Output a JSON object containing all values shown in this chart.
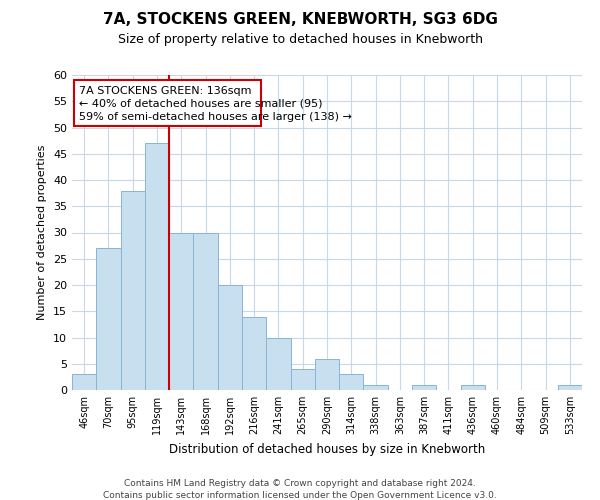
{
  "title": "7A, STOCKENS GREEN, KNEBWORTH, SG3 6DG",
  "subtitle": "Size of property relative to detached houses in Knebworth",
  "xlabel": "Distribution of detached houses by size in Knebworth",
  "ylabel": "Number of detached properties",
  "bar_color": "#c8dff0",
  "bar_edge_color": "#8ab4d4",
  "bin_labels": [
    "46sqm",
    "70sqm",
    "95sqm",
    "119sqm",
    "143sqm",
    "168sqm",
    "192sqm",
    "216sqm",
    "241sqm",
    "265sqm",
    "290sqm",
    "314sqm",
    "338sqm",
    "363sqm",
    "387sqm",
    "411sqm",
    "436sqm",
    "460sqm",
    "484sqm",
    "509sqm",
    "533sqm"
  ],
  "bar_heights": [
    3,
    27,
    38,
    47,
    30,
    30,
    20,
    14,
    10,
    4,
    6,
    3,
    1,
    0,
    1,
    0,
    1,
    0,
    0,
    0,
    1
  ],
  "ylim": [
    0,
    60
  ],
  "yticks": [
    0,
    5,
    10,
    15,
    20,
    25,
    30,
    35,
    40,
    45,
    50,
    55,
    60
  ],
  "vline_x": 4,
  "vline_color": "#cc0000",
  "footer_line1": "Contains HM Land Registry data © Crown copyright and database right 2024.",
  "footer_line2": "Contains public sector information licensed under the Open Government Licence v3.0.",
  "background_color": "#ffffff",
  "grid_color": "#c8d8e8"
}
